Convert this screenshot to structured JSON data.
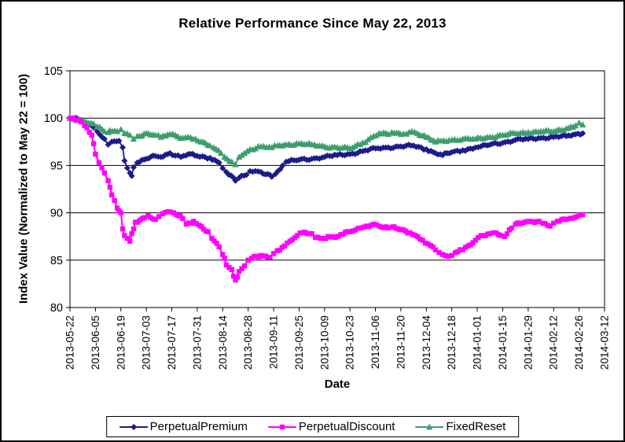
{
  "chart_data": {
    "type": "line",
    "title": "Relative Performance Since May 22, 2013",
    "xlabel": "Date",
    "ylabel": "Index Value (Normalized to May 22 = 100)",
    "ylim": [
      80,
      105
    ],
    "y_ticks": [
      105,
      100,
      95,
      90,
      85,
      80
    ],
    "x_range": [
      "2013-05-22",
      "2014-03-12"
    ],
    "x_ticks": [
      "2013-05-22",
      "2013-06-05",
      "2013-06-19",
      "2013-07-03",
      "2013-07-17",
      "2013-07-31",
      "2013-08-14",
      "2013-08-28",
      "2013-09-11",
      "2013-09-25",
      "2013-10-09",
      "2013-10-23",
      "2013-11-06",
      "2013-11-20",
      "2013-12-04",
      "2013-12-18",
      "2014-01-01",
      "2014-01-15",
      "2014-01-29",
      "2014-02-12",
      "2014-02-26",
      "2014-03-12"
    ],
    "grid": "horizontal",
    "legend_position": "bottom",
    "series": [
      {
        "name": "PerpetualPremium",
        "color": "#1b1b8a",
        "marker": "diamond",
        "points": [
          [
            "2013-05-22",
            100
          ],
          [
            "2013-05-24",
            100
          ],
          [
            "2013-05-28",
            99.8
          ],
          [
            "2013-05-31",
            99.5
          ],
          [
            "2013-06-04",
            99.0
          ],
          [
            "2013-06-06",
            98.6
          ],
          [
            "2013-06-10",
            97.8
          ],
          [
            "2013-06-12",
            97.2
          ],
          [
            "2013-06-14",
            97.5
          ],
          [
            "2013-06-18",
            97.6
          ],
          [
            "2013-06-20",
            96.9
          ],
          [
            "2013-06-21",
            95.5
          ],
          [
            "2013-06-24",
            94.2
          ],
          [
            "2013-06-25",
            93.9
          ],
          [
            "2013-06-26",
            94.8
          ],
          [
            "2013-06-28",
            95.3
          ],
          [
            "2013-07-03",
            95.7
          ],
          [
            "2013-07-08",
            96.0
          ],
          [
            "2013-07-11",
            95.9
          ],
          [
            "2013-07-16",
            96.3
          ],
          [
            "2013-07-22",
            95.9
          ],
          [
            "2013-07-26",
            96.2
          ],
          [
            "2013-07-31",
            96.0
          ],
          [
            "2013-08-07",
            95.8
          ],
          [
            "2013-08-12",
            95.3
          ],
          [
            "2013-08-14",
            94.7
          ],
          [
            "2013-08-16",
            94.3
          ],
          [
            "2013-08-20",
            93.7
          ],
          [
            "2013-08-21",
            93.4
          ],
          [
            "2013-08-23",
            93.7
          ],
          [
            "2013-08-27",
            94.0
          ],
          [
            "2013-08-29",
            94.4
          ],
          [
            "2013-09-04",
            94.3
          ],
          [
            "2013-09-09",
            94.0
          ],
          [
            "2013-09-10",
            93.8
          ],
          [
            "2013-09-12",
            94.1
          ],
          [
            "2013-09-16",
            95.0
          ],
          [
            "2013-09-18",
            95.4
          ],
          [
            "2013-09-25",
            95.6
          ],
          [
            "2013-10-02",
            95.7
          ],
          [
            "2013-10-09",
            95.9
          ],
          [
            "2013-10-16",
            96.1
          ],
          [
            "2013-10-23",
            96.2
          ],
          [
            "2013-10-30",
            96.5
          ],
          [
            "2013-11-06",
            96.8
          ],
          [
            "2013-11-13",
            96.9
          ],
          [
            "2013-11-20",
            97.0
          ],
          [
            "2013-11-27",
            97.1
          ],
          [
            "2013-12-04",
            96.7
          ],
          [
            "2013-12-09",
            96.3
          ],
          [
            "2013-12-13",
            96.1
          ],
          [
            "2013-12-18",
            96.4
          ],
          [
            "2013-12-24",
            96.6
          ],
          [
            "2013-12-31",
            96.9
          ],
          [
            "2014-01-03",
            97.0
          ],
          [
            "2014-01-08",
            97.2
          ],
          [
            "2014-01-15",
            97.4
          ],
          [
            "2014-01-22",
            97.7
          ],
          [
            "2014-01-29",
            97.8
          ],
          [
            "2014-02-05",
            97.9
          ],
          [
            "2014-02-12",
            98.0
          ],
          [
            "2014-02-19",
            98.1
          ],
          [
            "2014-02-24",
            98.3
          ],
          [
            "2014-02-28",
            98.4
          ]
        ]
      },
      {
        "name": "PerpetualDiscount",
        "color": "#ff00ff",
        "marker": "square",
        "points": [
          [
            "2013-05-22",
            100
          ],
          [
            "2013-05-24",
            100
          ],
          [
            "2013-05-28",
            99.6
          ],
          [
            "2013-05-30",
            99.2
          ],
          [
            "2013-06-03",
            98.2
          ],
          [
            "2013-06-04",
            97.3
          ],
          [
            "2013-06-05",
            96.2
          ],
          [
            "2013-06-07",
            95.3
          ],
          [
            "2013-06-10",
            94.2
          ],
          [
            "2013-06-12",
            93.4
          ],
          [
            "2013-06-13",
            92.7
          ],
          [
            "2013-06-14",
            91.9
          ],
          [
            "2013-06-17",
            90.5
          ],
          [
            "2013-06-18",
            90.2
          ],
          [
            "2013-06-19",
            90.0
          ],
          [
            "2013-06-20",
            88.3
          ],
          [
            "2013-06-21",
            87.6
          ],
          [
            "2013-06-24",
            87.0
          ],
          [
            "2013-06-25",
            87.8
          ],
          [
            "2013-06-26",
            88.3
          ],
          [
            "2013-06-27",
            89.0
          ],
          [
            "2013-07-02",
            89.5
          ],
          [
            "2013-07-04",
            89.7
          ],
          [
            "2013-07-08",
            89.3
          ],
          [
            "2013-07-10",
            89.6
          ],
          [
            "2013-07-12",
            89.9
          ],
          [
            "2013-07-16",
            90.1
          ],
          [
            "2013-07-18",
            90.0
          ],
          [
            "2013-07-23",
            89.4
          ],
          [
            "2013-07-25",
            88.8
          ],
          [
            "2013-07-29",
            89.1
          ],
          [
            "2013-08-01",
            88.7
          ],
          [
            "2013-08-06",
            88.0
          ],
          [
            "2013-08-08",
            87.3
          ],
          [
            "2013-08-12",
            86.4
          ],
          [
            "2013-08-14",
            85.6
          ],
          [
            "2013-08-15",
            85.2
          ],
          [
            "2013-08-16",
            84.5
          ],
          [
            "2013-08-19",
            84.0
          ],
          [
            "2013-08-20",
            83.3
          ],
          [
            "2013-08-21",
            82.9
          ],
          [
            "2013-08-22",
            83.2
          ],
          [
            "2013-08-23",
            83.8
          ],
          [
            "2013-08-26",
            84.4
          ],
          [
            "2013-08-28",
            85.0
          ],
          [
            "2013-08-30",
            85.2
          ],
          [
            "2013-09-04",
            85.5
          ],
          [
            "2013-09-09",
            85.3
          ],
          [
            "2013-09-11",
            85.7
          ],
          [
            "2013-09-13",
            86.0
          ],
          [
            "2013-09-17",
            86.5
          ],
          [
            "2013-09-20",
            87.0
          ],
          [
            "2013-09-24",
            87.6
          ],
          [
            "2013-09-27",
            87.9
          ],
          [
            "2013-10-02",
            87.8
          ],
          [
            "2013-10-04",
            87.4
          ],
          [
            "2013-10-08",
            87.3
          ],
          [
            "2013-10-11",
            87.5
          ],
          [
            "2013-10-15",
            87.4
          ],
          [
            "2013-10-18",
            87.7
          ],
          [
            "2013-10-23",
            88.0
          ],
          [
            "2013-10-29",
            88.4
          ],
          [
            "2013-11-01",
            88.6
          ],
          [
            "2013-11-05",
            88.8
          ],
          [
            "2013-11-08",
            88.6
          ],
          [
            "2013-11-13",
            88.4
          ],
          [
            "2013-11-15",
            88.5
          ],
          [
            "2013-11-20",
            88.2
          ],
          [
            "2013-11-25",
            87.9
          ],
          [
            "2013-11-28",
            87.6
          ],
          [
            "2013-12-02",
            87.1
          ],
          [
            "2013-12-05",
            86.7
          ],
          [
            "2013-12-09",
            86.1
          ],
          [
            "2013-12-11",
            85.8
          ],
          [
            "2013-12-13",
            85.6
          ],
          [
            "2013-12-16",
            85.4
          ],
          [
            "2013-12-18",
            85.5
          ],
          [
            "2013-12-20",
            85.8
          ],
          [
            "2013-12-24",
            86.1
          ],
          [
            "2013-12-27",
            86.5
          ],
          [
            "2013-12-31",
            87.1
          ],
          [
            "2014-01-03",
            87.6
          ],
          [
            "2014-01-08",
            87.8
          ],
          [
            "2014-01-10",
            87.9
          ],
          [
            "2014-01-14",
            87.6
          ],
          [
            "2014-01-16",
            87.5
          ],
          [
            "2014-01-20",
            88.4
          ],
          [
            "2014-01-22",
            88.8
          ],
          [
            "2014-01-27",
            89.0
          ],
          [
            "2014-01-30",
            89.1
          ],
          [
            "2014-02-04",
            89.1
          ],
          [
            "2014-02-06",
            88.9
          ],
          [
            "2014-02-10",
            88.6
          ],
          [
            "2014-02-12",
            88.9
          ],
          [
            "2014-02-14",
            89.1
          ],
          [
            "2014-02-19",
            89.3
          ],
          [
            "2014-02-21",
            89.4
          ],
          [
            "2014-02-25",
            89.6
          ],
          [
            "2014-02-28",
            89.8
          ]
        ]
      },
      {
        "name": "FixedReset",
        "color": "#3d9e6d",
        "marker": "triangle",
        "points": [
          [
            "2013-05-22",
            100
          ],
          [
            "2013-05-24",
            99.9
          ],
          [
            "2013-05-28",
            99.8
          ],
          [
            "2013-05-31",
            99.6
          ],
          [
            "2013-06-04",
            99.4
          ],
          [
            "2013-06-06",
            99.1
          ],
          [
            "2013-06-10",
            98.6
          ],
          [
            "2013-06-12",
            98.5
          ],
          [
            "2013-06-13",
            98.7
          ],
          [
            "2013-06-17",
            98.6
          ],
          [
            "2013-06-19",
            98.8
          ],
          [
            "2013-06-21",
            98.4
          ],
          [
            "2013-06-24",
            98.2
          ],
          [
            "2013-06-26",
            97.8
          ],
          [
            "2013-06-28",
            98.1
          ],
          [
            "2013-07-03",
            98.4
          ],
          [
            "2013-07-08",
            98.2
          ],
          [
            "2013-07-11",
            98.0
          ],
          [
            "2013-07-16",
            98.3
          ],
          [
            "2013-07-19",
            98.2
          ],
          [
            "2013-07-23",
            97.9
          ],
          [
            "2013-07-26",
            98.0
          ],
          [
            "2013-07-30",
            97.8
          ],
          [
            "2013-08-02",
            97.5
          ],
          [
            "2013-08-07",
            97.1
          ],
          [
            "2013-08-09",
            96.9
          ],
          [
            "2013-08-13",
            96.3
          ],
          [
            "2013-08-15",
            95.9
          ],
          [
            "2013-08-19",
            95.4
          ],
          [
            "2013-08-21",
            95.1
          ],
          [
            "2013-08-23",
            95.9
          ],
          [
            "2013-08-26",
            96.3
          ],
          [
            "2013-08-29",
            96.7
          ],
          [
            "2013-09-04",
            97.0
          ],
          [
            "2013-09-10",
            96.9
          ],
          [
            "2013-09-13",
            97.1
          ],
          [
            "2013-09-18",
            97.2
          ],
          [
            "2013-09-25",
            97.3
          ],
          [
            "2013-10-02",
            97.2
          ],
          [
            "2013-10-09",
            97.0
          ],
          [
            "2013-10-16",
            96.9
          ],
          [
            "2013-10-23",
            96.8
          ],
          [
            "2013-10-30",
            97.4
          ],
          [
            "2013-11-05",
            98.1
          ],
          [
            "2013-11-08",
            98.4
          ],
          [
            "2013-11-13",
            98.3
          ],
          [
            "2013-11-15",
            98.5
          ],
          [
            "2013-11-20",
            98.3
          ],
          [
            "2013-11-26",
            98.6
          ],
          [
            "2013-11-29",
            98.4
          ],
          [
            "2013-12-04",
            98.0
          ],
          [
            "2013-12-09",
            97.5
          ],
          [
            "2013-12-12",
            97.6
          ],
          [
            "2013-12-18",
            97.7
          ],
          [
            "2013-12-24",
            97.8
          ],
          [
            "2013-12-31",
            97.8
          ],
          [
            "2014-01-08",
            98.0
          ],
          [
            "2014-01-15",
            98.2
          ],
          [
            "2014-01-22",
            98.4
          ],
          [
            "2014-01-29",
            98.5
          ],
          [
            "2014-02-05",
            98.6
          ],
          [
            "2014-02-12",
            98.6
          ],
          [
            "2014-02-19",
            98.9
          ],
          [
            "2014-02-24",
            99.2
          ],
          [
            "2014-02-26",
            99.5
          ],
          [
            "2014-02-28",
            99.3
          ]
        ]
      }
    ]
  }
}
